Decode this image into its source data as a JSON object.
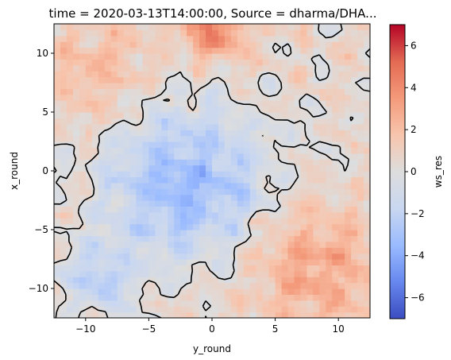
{
  "chart_data": {
    "type": "heatmap",
    "title": "time = 2020-03-13T14:00:00, Source = dharma/DHA...",
    "xlabel": "y_round",
    "ylabel": "x_round",
    "xlim": [
      -12.5,
      12.5
    ],
    "ylim": [
      -12.5,
      12.5
    ],
    "x_ticks": [
      -10,
      -5,
      0,
      5,
      10
    ],
    "y_ticks": [
      -10,
      -5,
      0,
      5,
      10
    ],
    "x_tick_labels": [
      "−10",
      "−5",
      "0",
      "5",
      "10"
    ],
    "y_tick_labels": [
      "−10",
      "−5",
      "0",
      "5",
      "10"
    ],
    "colorbar": {
      "label": "ws_res",
      "vmin": -7,
      "vmax": 7,
      "ticks": [
        -6,
        -4,
        -2,
        0,
        2,
        4,
        6
      ],
      "tick_labels": [
        "−6",
        "−4",
        "−2",
        "0",
        "2",
        "4",
        "6"
      ],
      "colormap": "coolwarm",
      "colors": [
        "#3b4cc0",
        "#6788ee",
        "#9abbff",
        "#c9d7f0",
        "#dddddd",
        "#f7c5ad",
        "#f49a7b",
        "#e36a53",
        "#b40426"
      ]
    },
    "field_regions": [
      {
        "desc": "negative-center",
        "center": [
          -2,
          -1
        ],
        "spread": 6.5,
        "value": -4.0
      },
      {
        "desc": "positive-top",
        "center": [
          0,
          12
        ],
        "spread": 2.5,
        "value": 3.5
      },
      {
        "desc": "positive-lower-right",
        "center": [
          8,
          -8
        ],
        "spread": 5,
        "value": 2.5
      },
      {
        "desc": "positive-upper-left",
        "center": [
          -9,
          8
        ],
        "spread": 4,
        "value": 1.5
      },
      {
        "desc": "negative-lower-left",
        "center": [
          -9,
          -9
        ],
        "spread": 3,
        "value": -2.5
      }
    ],
    "contour_level": 0
  }
}
